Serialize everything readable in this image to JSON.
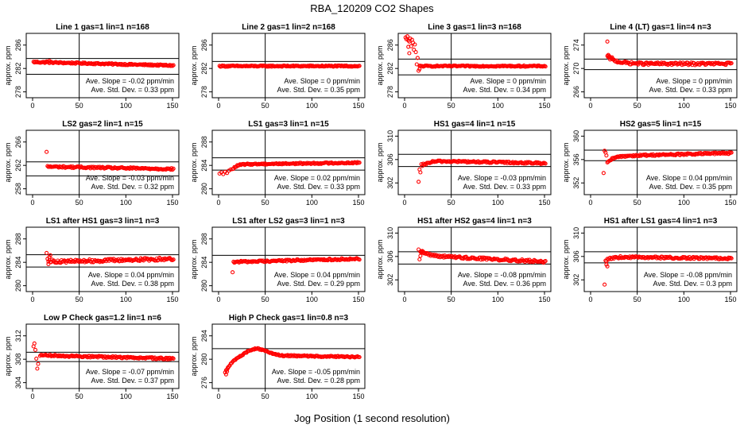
{
  "figure": {
    "title": "RBA_120209  CO2 Shapes",
    "xlabel": "Jog Position (1 second resolution)"
  },
  "chart_data": [
    {
      "type": "scatter",
      "title": "Line 1 gas=1 lin=1 n=168",
      "ylabel": "approx. ppm",
      "xlim": [
        0,
        150
      ],
      "xticks": [
        0,
        50,
        100,
        150
      ],
      "ylim": [
        277,
        288
      ],
      "yticks": [
        278,
        282,
        286
      ],
      "hlines": [
        283.7,
        281
      ],
      "vline": 50,
      "curve": {
        "x0": 1,
        "x1": 151,
        "base": 282.8,
        "amp": 0,
        "tau": 5,
        "slope": -0.004,
        "noise": 0.12
      },
      "extra": [
        [
          15,
          283.2
        ],
        [
          18,
          283.3
        ],
        [
          20,
          283.1
        ]
      ],
      "stats": [
        "Ave. Slope = -0.02  ppm/min",
        "Ave. Std. Dev. = 0.33  ppm"
      ]
    },
    {
      "type": "scatter",
      "title": "Line 2 gas=1 lin=2 n=168",
      "ylabel": "approx. ppm",
      "xlim": [
        0,
        150
      ],
      "xticks": [
        0,
        50,
        100,
        150
      ],
      "ylim": [
        277,
        288
      ],
      "yticks": [
        278,
        282,
        286
      ],
      "hlines": [
        283.2
      ],
      "vline": 50,
      "curve": {
        "x0": 1,
        "x1": 151,
        "base": 282.4,
        "amp": 0,
        "tau": 5,
        "slope": 0,
        "noise": 0.1
      },
      "extra": [],
      "stats": [
        "Ave. Slope = 0  ppm/min",
        "Ave. Std. Dev. = 0.35  ppm"
      ]
    },
    {
      "type": "scatter",
      "title": "Line 3 gas=1 lin=3 n=168",
      "ylabel": "approx. ppm",
      "xlim": [
        0,
        150
      ],
      "xticks": [
        0,
        50,
        100,
        150
      ],
      "ylim": [
        277,
        288
      ],
      "yticks": [
        278,
        282,
        286
      ],
      "hlines": [
        283.6,
        280.9
      ],
      "vline": 50,
      "curve": {
        "x0": 16,
        "x1": 151,
        "base": 282.4,
        "amp": 0,
        "tau": 5,
        "slope": 0,
        "noise": 0.1
      },
      "extra": [
        [
          1,
          287.3
        ],
        [
          2,
          287
        ],
        [
          3,
          287.5
        ],
        [
          4,
          286.8
        ],
        [
          5,
          286.6
        ],
        [
          6,
          287.1
        ],
        [
          7,
          285.8
        ],
        [
          8,
          286.9
        ],
        [
          9,
          286.4
        ],
        [
          10,
          285.2
        ],
        [
          11,
          286.1
        ],
        [
          12,
          284.8
        ],
        [
          13,
          282.7
        ],
        [
          14,
          283.8
        ],
        [
          15,
          281.6
        ],
        [
          16,
          281.9
        ],
        [
          5,
          284.6
        ],
        [
          4,
          285.7
        ]
      ],
      "stats": [
        "Ave. Slope = 0  ppm/min",
        "Ave. Std. Dev. = 0.34  ppm"
      ]
    },
    {
      "type": "scatter",
      "title": "Line 4 (LT) gas=1 lin=4 n=3",
      "ylabel": "approx. ppm",
      "xlim": [
        0,
        150
      ],
      "xticks": [
        0,
        50,
        100,
        150
      ],
      "ylim": [
        265,
        276
      ],
      "yticks": [
        266,
        270,
        274
      ],
      "hlines": [
        271.6,
        269.8
      ],
      "vline": 50,
      "curve": {
        "x0": 18,
        "x1": 151,
        "base": 270.8,
        "amp": 1.2,
        "tau": 10,
        "slope": 0,
        "noise": 0.22
      },
      "extra": [
        [
          18,
          274.6
        ],
        [
          19,
          272.3
        ],
        [
          20,
          272.1
        ],
        [
          21,
          271.8
        ],
        [
          23,
          271.9
        ]
      ],
      "stats": [
        "Ave. Slope = 0  ppm/min",
        "Ave. Std. Dev. = 0.33  ppm"
      ]
    },
    {
      "type": "scatter",
      "title": "LS2 gas=2 lin=1 n=15",
      "ylabel": "approx. ppm",
      "xlim": [
        0,
        150
      ],
      "xticks": [
        0,
        50,
        100,
        150
      ],
      "ylim": [
        257,
        268
      ],
      "yticks": [
        258,
        262,
        266
      ],
      "hlines": [
        262.6,
        260.2
      ],
      "vline": 50,
      "curve": {
        "x0": 16,
        "x1": 151,
        "base": 261.6,
        "amp": 0,
        "tau": 5,
        "slope": -0.003,
        "noise": 0.15
      },
      "extra": [
        [
          15,
          264.3
        ]
      ],
      "stats": [
        "Ave. Slope = -0.03  ppm/min",
        "Ave. Std. Dev. = 0.32  ppm"
      ]
    },
    {
      "type": "scatter",
      "title": "LS1 gas=3 lin=1 n=15",
      "ylabel": "approx. ppm",
      "xlim": [
        0,
        150
      ],
      "xticks": [
        0,
        50,
        100,
        150
      ],
      "ylim": [
        279,
        290
      ],
      "yticks": [
        280,
        284,
        288
      ],
      "hlines": [
        285.3,
        283.2
      ],
      "vline": 50,
      "curve": {
        "x0": 15,
        "x1": 151,
        "base": 284.3,
        "amp": -0.9,
        "tau": 4,
        "slope": 0.002,
        "noise": 0.12
      },
      "extra": [
        [
          1,
          282.6
        ],
        [
          3,
          282.8
        ],
        [
          5,
          282.5
        ],
        [
          7,
          282.9
        ],
        [
          9,
          282.7
        ],
        [
          11,
          283.1
        ],
        [
          13,
          283.3
        ]
      ],
      "stats": [
        "Ave. Slope = 0.02  ppm/min",
        "Ave. Std. Dev. = 0.33  ppm"
      ]
    },
    {
      "type": "scatter",
      "title": "HS1 gas=4 lin=1 n=15",
      "ylabel": "approx. ppm",
      "xlim": [
        0,
        150
      ],
      "xticks": [
        0,
        50,
        100,
        150
      ],
      "ylim": [
        300,
        311
      ],
      "yticks": [
        302,
        306,
        310
      ],
      "hlines": [
        306.9,
        304.8
      ],
      "vline": 50,
      "curve": {
        "x0": 21,
        "x1": 151,
        "base": 305.6,
        "amp": -0.8,
        "tau": 5,
        "slope": -0.003,
        "noise": 0.15
      },
      "extra": [
        [
          15,
          302.2
        ],
        [
          16,
          304.3
        ],
        [
          17,
          303.8
        ],
        [
          18,
          305.2
        ],
        [
          19,
          304.9
        ],
        [
          20,
          305.3
        ]
      ],
      "stats": [
        "Ave. Slope = -0.03  ppm/min",
        "Ave. Std. Dev. = 0.33  ppm"
      ]
    },
    {
      "type": "scatter",
      "title": "HS2 gas=5 lin=1 n=15",
      "ylabel": "approx. ppm",
      "xlim": [
        0,
        150
      ],
      "xticks": [
        0,
        50,
        100,
        150
      ],
      "ylim": [
        350,
        361
      ],
      "yticks": [
        352,
        356,
        360
      ],
      "hlines": [
        357.6,
        355.8
      ],
      "vline": 50,
      "curve": {
        "x0": 18,
        "x1": 151,
        "base": 356.8,
        "amp": -1.2,
        "tau": 6,
        "slope": 0.004,
        "noise": 0.15
      },
      "extra": [
        [
          14,
          353.7
        ],
        [
          15,
          357.5
        ],
        [
          16,
          357.2
        ],
        [
          17,
          356.7
        ]
      ],
      "stats": [
        "Ave. Slope = 0.04  ppm/min",
        "Ave. Std. Dev. = 0.35  ppm"
      ]
    },
    {
      "type": "scatter",
      "title": "LS1 after HS1 gas=3 lin=1 n=3",
      "ylabel": "approx. ppm",
      "xlim": [
        0,
        150
      ],
      "xticks": [
        0,
        50,
        100,
        150
      ],
      "ylim": [
        279,
        290
      ],
      "yticks": [
        280,
        284,
        288
      ],
      "hlines": [
        285.3,
        283.2
      ],
      "vline": 50,
      "curve": {
        "x0": 17,
        "x1": 151,
        "base": 284.3,
        "amp": 0.3,
        "tau": 5,
        "slope": 0.004,
        "noise": 0.25
      },
      "extra": [
        [
          15,
          285.6
        ],
        [
          16,
          284.6
        ],
        [
          17,
          283.7
        ],
        [
          18,
          284.9
        ],
        [
          19,
          285.2
        ]
      ],
      "stats": [
        "Ave. Slope = 0.04  ppm/min",
        "Ave. Std. Dev. = 0.38  ppm"
      ]
    },
    {
      "type": "scatter",
      "title": "LS1 after LS2 gas=3 lin=1 n=3",
      "ylabel": "approx. ppm",
      "xlim": [
        0,
        150
      ],
      "xticks": [
        0,
        50,
        100,
        150
      ],
      "ylim": [
        279,
        290
      ],
      "yticks": [
        280,
        284,
        288
      ],
      "hlines": [
        285.2
      ],
      "vline": 50,
      "curve": {
        "x0": 17,
        "x1": 151,
        "base": 284.3,
        "amp": 0,
        "tau": 5,
        "slope": 0.004,
        "noise": 0.15
      },
      "extra": [
        [
          15,
          282.3
        ],
        [
          16,
          284.1
        ]
      ],
      "stats": [
        "Ave. Slope = 0.04  ppm/min",
        "Ave. Std. Dev. = 0.29  ppm"
      ]
    },
    {
      "type": "scatter",
      "title": "HS1 after HS2 gas=4 lin=1 n=3",
      "ylabel": "approx. ppm",
      "xlim": [
        0,
        150
      ],
      "xticks": [
        0,
        50,
        100,
        150
      ],
      "ylim": [
        300,
        311
      ],
      "yticks": [
        302,
        306,
        310
      ],
      "hlines": [
        306.8,
        304.7
      ],
      "vline": 50,
      "curve": {
        "x0": 17,
        "x1": 151,
        "base": 305.7,
        "amp": 0.8,
        "tau": 8,
        "slope": -0.008,
        "noise": 0.2
      },
      "extra": [
        [
          15,
          307.2
        ],
        [
          16,
          305.5
        ],
        [
          17,
          306.1
        ],
        [
          18,
          306.9
        ],
        [
          20,
          306.8
        ]
      ],
      "stats": [
        "Ave. Slope = -0.08  ppm/min",
        "Ave. Std. Dev. = 0.36  ppm"
      ]
    },
    {
      "type": "scatter",
      "title": "HS1 after LS1 gas=4 lin=1 n=3",
      "ylabel": "approx. ppm",
      "xlim": [
        0,
        150
      ],
      "xticks": [
        0,
        50,
        100,
        150
      ],
      "ylim": [
        300,
        311
      ],
      "yticks": [
        302,
        306,
        310
      ],
      "hlines": [
        306.8,
        304.9
      ],
      "vline": 50,
      "curve": {
        "x0": 17,
        "x1": 151,
        "base": 305.8,
        "amp": -0.6,
        "tau": 5,
        "slope": -0.002,
        "noise": 0.17
      },
      "extra": [
        [
          15,
          301.2
        ],
        [
          16,
          305.3
        ],
        [
          17,
          304.6
        ],
        [
          18,
          304.3
        ]
      ],
      "stats": [
        "Ave. Slope = -0.08  ppm/min",
        "Ave. Std. Dev. = 0.3  ppm"
      ]
    },
    {
      "type": "scatter",
      "title": "Low P Check gas=1.2 lin=1 n=6",
      "ylabel": "approx. ppm",
      "xlim": [
        0,
        150
      ],
      "xticks": [
        0,
        50,
        100,
        150
      ],
      "ylim": [
        303,
        314
      ],
      "yticks": [
        304,
        308,
        312
      ],
      "hlines": [
        309.2,
        307.6
      ],
      "vline": 50,
      "curve": {
        "x0": 8,
        "x1": 151,
        "base": 308.4,
        "amp": 0,
        "tau": 5,
        "slope": -0.004,
        "noise": 0.15
      },
      "extra": [
        [
          1,
          310.2
        ],
        [
          2,
          310.7
        ],
        [
          3,
          309.6
        ],
        [
          4,
          308.1
        ],
        [
          5,
          306.4
        ],
        [
          6,
          307.2
        ]
      ],
      "stats": [
        "Ave. Slope = -0.07  ppm/min",
        "Ave. Std. Dev. = 0.37  ppm"
      ]
    },
    {
      "type": "scatter",
      "title": "High P Check gas=1 lin=0.8 n=3",
      "ylabel": "approx. ppm",
      "xlim": [
        0,
        150
      ],
      "xticks": [
        0,
        50,
        100,
        150
      ],
      "ylim": [
        275,
        286
      ],
      "yticks": [
        276,
        280,
        284
      ],
      "hlines": [
        281.8
      ],
      "vline": 50,
      "curve": {
        "x0": 7,
        "x1": 151,
        "base": 280.6,
        "amp": -3,
        "tau": 10,
        "bump": [
          40,
          1.2,
          15
        ],
        "slope": -0.003,
        "noise": 0.12
      },
      "extra": [
        [
          8,
          277.4
        ],
        [
          9,
          277.9
        ],
        [
          10,
          278.6
        ]
      ],
      "stats": [
        "Ave. Slope = -0.05  ppm/min",
        "Ave. Std. Dev. = 0.28  ppm"
      ]
    }
  ]
}
